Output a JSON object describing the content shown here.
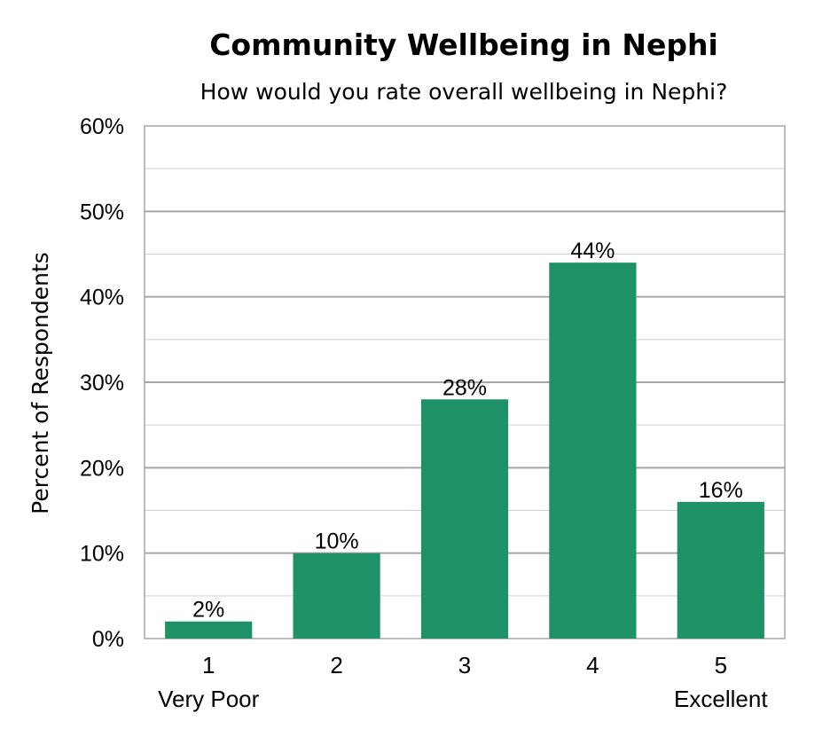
{
  "chart_data": {
    "type": "bar",
    "title": "Community Wellbeing in Nephi",
    "subtitle": "How would you rate overall wellbeing in Nephi?",
    "ylabel": "Percent of Respondents",
    "xlabel": "",
    "categories": [
      "1",
      "2",
      "3",
      "4",
      "5"
    ],
    "category_sublabels": [
      "Very Poor",
      "",
      "",
      "",
      "Excellent"
    ],
    "values": [
      2,
      10,
      28,
      44,
      16
    ],
    "value_labels": [
      "2%",
      "10%",
      "28%",
      "44%",
      "16%"
    ],
    "ylim": [
      0,
      60
    ],
    "yticks": [
      0,
      10,
      20,
      30,
      40,
      50,
      60
    ],
    "ytick_labels": [
      "0%",
      "10%",
      "20%",
      "30%",
      "40%",
      "50%",
      "60%"
    ],
    "grid": true,
    "bar_color": "#1e9166"
  }
}
